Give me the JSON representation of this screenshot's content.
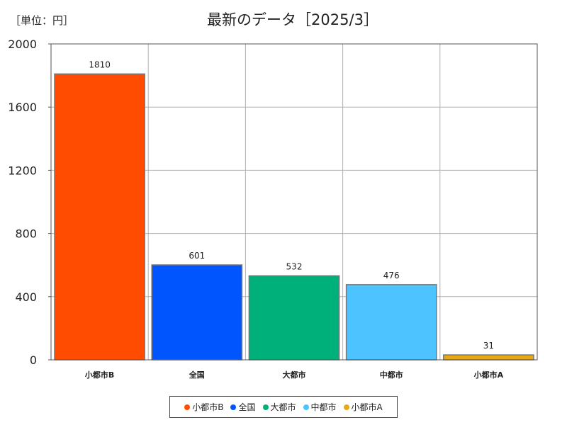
{
  "unit_label": "［単位：円］",
  "chart_data": {
    "type": "bar",
    "title": "最新のデータ［2025/3］",
    "categories": [
      "小都市B",
      "全国",
      "大都市",
      "中都市",
      "小都市A"
    ],
    "values": [
      1810,
      601,
      532,
      476,
      31
    ],
    "colors": [
      "#ff4c00",
      "#0055ff",
      "#00b07a",
      "#4dc3ff",
      "#e6a817"
    ],
    "yticks": [
      0,
      400,
      800,
      1200,
      1600,
      2000
    ],
    "ylim": [
      0,
      2000
    ],
    "grid": true,
    "legend_placement": "bottom-center"
  }
}
